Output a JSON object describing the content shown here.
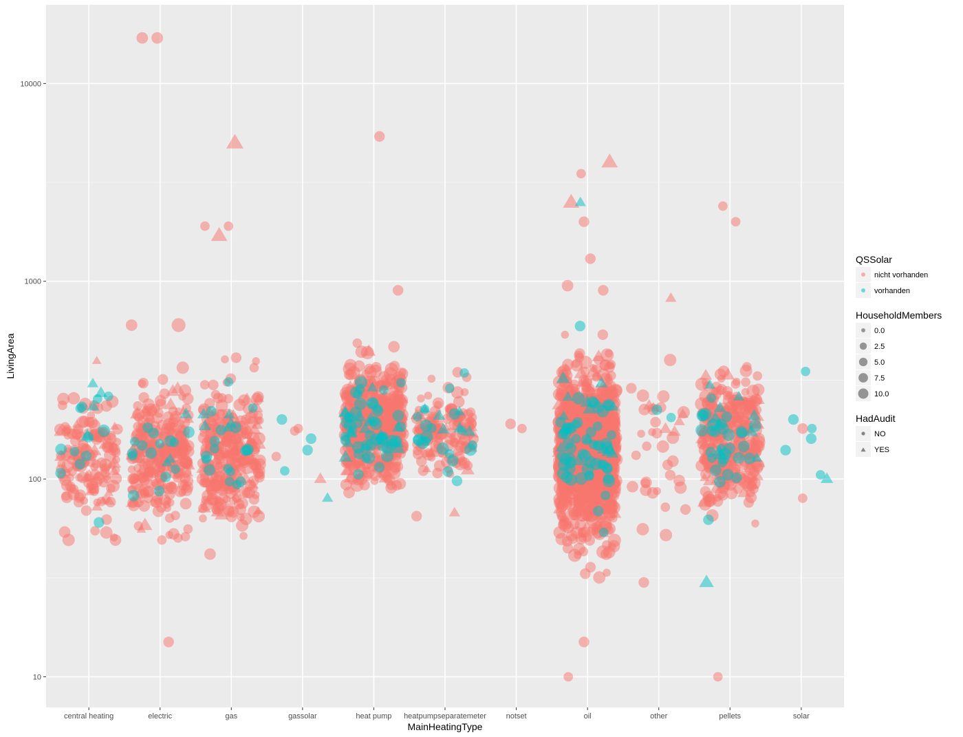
{
  "chart_data": {
    "type": "scatter",
    "xlabel": "MainHeatingType",
    "ylabel": "LivingArea",
    "y_scale": "log10",
    "ylim": [
      7,
      25000
    ],
    "y_ticks": [
      10,
      100,
      1000,
      10000
    ],
    "y_tick_labels": [
      "10",
      "100",
      "1000",
      "10000"
    ],
    "categories": [
      "central heating",
      "electric",
      "gas",
      "gassolar",
      "heat pump",
      "heatpumpseparatemeter",
      "notset",
      "oil",
      "other",
      "pellets",
      "solar"
    ],
    "jitter_width": 0.45,
    "grid": true,
    "legend_position": "right",
    "colors": {
      "panel_bg": "#EBEBEB",
      "grid_major": "#FFFFFF",
      "grid_minor": "#F5F5F5",
      "nicht vorhanden": "#F8766D",
      "vorhanden": "#00BFC4",
      "legend_key_bg": "#F2F2F2",
      "size_key": "#555555"
    },
    "legends": {
      "color": {
        "title": "QSSolar",
        "labels": [
          "nicht vorhanden",
          "vorhanden"
        ]
      },
      "size": {
        "title": "HouseholdMembers",
        "labels": [
          "0.0",
          "2.5",
          "5.0",
          "7.5",
          "10.0"
        ],
        "values": [
          0,
          2.5,
          5,
          7.5,
          10
        ]
      },
      "shape": {
        "title": "HadAudit",
        "labels": [
          "NO",
          "YES"
        ],
        "shapes": [
          "circle",
          "triangle"
        ]
      }
    },
    "clusters": [
      {
        "category": "central heating",
        "solar": "nicht vorhanden",
        "audit": "NO",
        "n": 140,
        "median": 120,
        "spread": 0.16,
        "members": [
          1,
          2,
          3,
          4,
          5
        ]
      },
      {
        "category": "central heating",
        "solar": "nicht vorhanden",
        "audit": "YES",
        "n": 20,
        "median": 130,
        "spread": 0.15,
        "members": [
          1,
          2,
          3,
          4
        ]
      },
      {
        "category": "central heating",
        "solar": "vorhanden",
        "audit": "NO",
        "n": 12,
        "median": 160,
        "spread": 0.15,
        "members": [
          2,
          3,
          4,
          5
        ]
      },
      {
        "category": "central heating",
        "solar": "vorhanden",
        "audit": "YES",
        "n": 4,
        "median": 200,
        "spread": 0.12,
        "members": [
          2,
          3,
          4
        ]
      },
      {
        "category": "electric",
        "solar": "nicht vorhanden",
        "audit": "NO",
        "n": 240,
        "median": 135,
        "spread": 0.17,
        "members": [
          1,
          2,
          3,
          4,
          5
        ]
      },
      {
        "category": "electric",
        "solar": "nicht vorhanden",
        "audit": "YES",
        "n": 45,
        "median": 150,
        "spread": 0.16,
        "members": [
          1,
          2,
          3,
          4,
          5
        ]
      },
      {
        "category": "electric",
        "solar": "vorhanden",
        "audit": "NO",
        "n": 15,
        "median": 130,
        "spread": 0.14,
        "members": [
          2,
          3,
          4
        ]
      },
      {
        "category": "electric",
        "solar": "vorhanden",
        "audit": "YES",
        "n": 3,
        "median": 160,
        "spread": 0.12,
        "members": [
          2,
          3
        ]
      },
      {
        "category": "gas",
        "solar": "nicht vorhanden",
        "audit": "NO",
        "n": 250,
        "median": 130,
        "spread": 0.17,
        "members": [
          1,
          2,
          3,
          4,
          5
        ]
      },
      {
        "category": "gas",
        "solar": "nicht vorhanden",
        "audit": "YES",
        "n": 45,
        "median": 140,
        "spread": 0.16,
        "members": [
          1,
          2,
          3,
          4,
          5
        ]
      },
      {
        "category": "gas",
        "solar": "vorhanden",
        "audit": "NO",
        "n": 18,
        "median": 150,
        "spread": 0.14,
        "members": [
          2,
          3,
          4
        ]
      },
      {
        "category": "gas",
        "solar": "vorhanden",
        "audit": "YES",
        "n": 5,
        "median": 190,
        "spread": 0.12,
        "members": [
          2,
          3
        ]
      },
      {
        "category": "heat pump",
        "solar": "nicht vorhanden",
        "audit": "NO",
        "n": 420,
        "median": 190,
        "spread": 0.14,
        "members": [
          1,
          2,
          3,
          4,
          5,
          6
        ]
      },
      {
        "category": "heat pump",
        "solar": "nicht vorhanden",
        "audit": "YES",
        "n": 90,
        "median": 190,
        "spread": 0.14,
        "members": [
          1,
          2,
          3,
          4,
          5
        ]
      },
      {
        "category": "heat pump",
        "solar": "vorhanden",
        "audit": "NO",
        "n": 45,
        "median": 180,
        "spread": 0.12,
        "members": [
          2,
          3,
          4,
          5
        ]
      },
      {
        "category": "heat pump",
        "solar": "vorhanden",
        "audit": "YES",
        "n": 15,
        "median": 180,
        "spread": 0.12,
        "members": [
          2,
          3,
          4
        ]
      },
      {
        "category": "heatpumpseparatemeter",
        "solar": "nicht vorhanden",
        "audit": "NO",
        "n": 120,
        "median": 175,
        "spread": 0.11,
        "members": [
          1,
          2,
          3,
          4,
          5
        ]
      },
      {
        "category": "heatpumpseparatemeter",
        "solar": "nicht vorhanden",
        "audit": "YES",
        "n": 20,
        "median": 175,
        "spread": 0.1,
        "members": [
          1,
          2,
          3,
          4
        ]
      },
      {
        "category": "heatpumpseparatemeter",
        "solar": "vorhanden",
        "audit": "NO",
        "n": 20,
        "median": 170,
        "spread": 0.1,
        "members": [
          2,
          3,
          4,
          5
        ]
      },
      {
        "category": "heatpumpseparatemeter",
        "solar": "vorhanden",
        "audit": "YES",
        "n": 6,
        "median": 180,
        "spread": 0.08,
        "members": [
          2,
          3
        ]
      },
      {
        "category": "oil",
        "solar": "nicht vorhanden",
        "audit": "NO",
        "n": 1150,
        "median": 135,
        "spread": 0.19,
        "members": [
          1,
          2,
          3,
          4,
          5,
          6
        ]
      },
      {
        "category": "oil",
        "solar": "nicht vorhanden",
        "audit": "YES",
        "n": 150,
        "median": 140,
        "spread": 0.18,
        "members": [
          1,
          2,
          3,
          4,
          5
        ]
      },
      {
        "category": "oil",
        "solar": "vorhanden",
        "audit": "NO",
        "n": 55,
        "median": 150,
        "spread": 0.16,
        "members": [
          2,
          3,
          4,
          5
        ]
      },
      {
        "category": "oil",
        "solar": "vorhanden",
        "audit": "YES",
        "n": 15,
        "median": 160,
        "spread": 0.15,
        "members": [
          2,
          3,
          4
        ]
      },
      {
        "category": "other",
        "solar": "nicht vorhanden",
        "audit": "NO",
        "n": 30,
        "median": 150,
        "spread": 0.2,
        "members": [
          1,
          2,
          3,
          4,
          5
        ]
      },
      {
        "category": "other",
        "solar": "nicht vorhanden",
        "audit": "YES",
        "n": 6,
        "median": 160,
        "spread": 0.18,
        "members": [
          2,
          3,
          4
        ]
      },
      {
        "category": "other",
        "solar": "vorhanden",
        "audit": "NO",
        "n": 2,
        "median": 220,
        "spread": 0.08,
        "members": [
          2,
          3
        ]
      },
      {
        "category": "pellets",
        "solar": "nicht vorhanden",
        "audit": "NO",
        "n": 280,
        "median": 155,
        "spread": 0.15,
        "members": [
          1,
          2,
          3,
          4,
          5,
          6
        ]
      },
      {
        "category": "pellets",
        "solar": "nicht vorhanden",
        "audit": "YES",
        "n": 50,
        "median": 160,
        "spread": 0.15,
        "members": [
          1,
          2,
          3,
          4,
          5
        ]
      },
      {
        "category": "pellets",
        "solar": "vorhanden",
        "audit": "NO",
        "n": 30,
        "median": 160,
        "spread": 0.14,
        "members": [
          2,
          3,
          4,
          5
        ]
      },
      {
        "category": "pellets",
        "solar": "vorhanden",
        "audit": "YES",
        "n": 10,
        "median": 170,
        "spread": 0.13,
        "members": [
          2,
          3,
          4
        ]
      }
    ],
    "points": [
      {
        "category": "electric",
        "y": 17000,
        "solar": "nicht vorhanden",
        "audit": "NO",
        "members": 4,
        "dx": -0.25
      },
      {
        "category": "electric",
        "y": 17000,
        "solar": "nicht vorhanden",
        "audit": "NO",
        "members": 4,
        "dx": -0.04
      },
      {
        "category": "electric",
        "y": 600,
        "solar": "nicht vorhanden",
        "audit": "NO",
        "members": 4,
        "dx": -0.4
      },
      {
        "category": "electric",
        "y": 600,
        "solar": "nicht vorhanden",
        "audit": "NO",
        "members": 7,
        "dx": 0.26
      },
      {
        "category": "electric",
        "y": 15,
        "solar": "nicht vorhanden",
        "audit": "NO",
        "members": 3,
        "dx": 0.12
      },
      {
        "category": "gas",
        "y": 5000,
        "solar": "nicht vorhanden",
        "audit": "YES",
        "members": 8,
        "dx": 0.05
      },
      {
        "category": "gas",
        "y": 1700,
        "solar": "nicht vorhanden",
        "audit": "YES",
        "members": 7,
        "dx": -0.17
      },
      {
        "category": "gas",
        "y": 1900,
        "solar": "nicht vorhanden",
        "audit": "NO",
        "members": 2,
        "dx": -0.37
      },
      {
        "category": "gas",
        "y": 1900,
        "solar": "nicht vorhanden",
        "audit": "NO",
        "members": 2,
        "dx": -0.04
      },
      {
        "category": "gassolar",
        "y": 200,
        "solar": "vorhanden",
        "audit": "NO",
        "members": 3,
        "dx": -0.29
      },
      {
        "category": "gassolar",
        "y": 160,
        "solar": "vorhanden",
        "audit": "NO",
        "members": 3,
        "dx": 0.12
      },
      {
        "category": "gassolar",
        "y": 140,
        "solar": "vorhanden",
        "audit": "NO",
        "members": 3,
        "dx": 0.07
      },
      {
        "category": "gassolar",
        "y": 110,
        "solar": "vorhanden",
        "audit": "NO",
        "members": 2,
        "dx": -0.25
      },
      {
        "category": "gassolar",
        "y": 80,
        "solar": "vorhanden",
        "audit": "YES",
        "members": 2,
        "dx": 0.35
      },
      {
        "category": "gassolar",
        "y": 130,
        "solar": "nicht vorhanden",
        "audit": "NO",
        "members": 2,
        "dx": -0.37
      },
      {
        "category": "gassolar",
        "y": 180,
        "solar": "nicht vorhanden",
        "audit": "NO",
        "members": 2,
        "dx": -0.06
      },
      {
        "category": "gassolar",
        "y": 175,
        "solar": "nicht vorhanden",
        "audit": "NO",
        "members": 2,
        "dx": -0.11
      },
      {
        "category": "gassolar",
        "y": 100,
        "solar": "nicht vorhanden",
        "audit": "YES",
        "members": 3,
        "dx": 0.25
      },
      {
        "category": "heat pump",
        "y": 5400,
        "solar": "nicht vorhanden",
        "audit": "NO",
        "members": 3,
        "dx": 0.08
      },
      {
        "category": "heat pump",
        "y": 900,
        "solar": "nicht vorhanden",
        "audit": "NO",
        "members": 3,
        "dx": 0.34
      },
      {
        "category": "notset",
        "y": 190,
        "solar": "nicht vorhanden",
        "audit": "NO",
        "members": 3,
        "dx": -0.08
      },
      {
        "category": "notset",
        "y": 180,
        "solar": "nicht vorhanden",
        "audit": "NO",
        "members": 2,
        "dx": 0.08
      },
      {
        "category": "oil",
        "y": 4000,
        "solar": "nicht vorhanden",
        "audit": "YES",
        "members": 7,
        "dx": 0.31
      },
      {
        "category": "oil",
        "y": 2500,
        "solar": "nicht vorhanden",
        "audit": "YES",
        "members": 7,
        "dx": -0.23
      },
      {
        "category": "oil",
        "y": 3500,
        "solar": "nicht vorhanden",
        "audit": "NO",
        "members": 2,
        "dx": -0.09
      },
      {
        "category": "oil",
        "y": 2000,
        "solar": "nicht vorhanden",
        "audit": "NO",
        "members": 3,
        "dx": -0.05
      },
      {
        "category": "oil",
        "y": 1300,
        "solar": "nicht vorhanden",
        "audit": "NO",
        "members": 3,
        "dx": 0.04
      },
      {
        "category": "oil",
        "y": 950,
        "solar": "nicht vorhanden",
        "audit": "NO",
        "members": 4,
        "dx": -0.28
      },
      {
        "category": "oil",
        "y": 900,
        "solar": "nicht vorhanden",
        "audit": "NO",
        "members": 3,
        "dx": 0.22
      },
      {
        "category": "oil",
        "y": 2500,
        "solar": "vorhanden",
        "audit": "YES",
        "members": 2,
        "dx": -0.1
      },
      {
        "category": "oil",
        "y": 10,
        "solar": "nicht vorhanden",
        "audit": "NO",
        "members": 2,
        "dx": -0.27
      },
      {
        "category": "oil",
        "y": 15,
        "solar": "nicht vorhanden",
        "audit": "NO",
        "members": 3,
        "dx": -0.05
      },
      {
        "category": "other",
        "y": 820,
        "solar": "nicht vorhanden",
        "audit": "YES",
        "members": 2,
        "dx": 0.17
      },
      {
        "category": "other",
        "y": 400,
        "solar": "nicht vorhanden",
        "audit": "NO",
        "members": 5,
        "dx": 0.16
      },
      {
        "category": "other",
        "y": 30,
        "solar": "nicht vorhanden",
        "audit": "NO",
        "members": 3,
        "dx": -0.21
      },
      {
        "category": "pellets",
        "y": 2400,
        "solar": "nicht vorhanden",
        "audit": "NO",
        "members": 2,
        "dx": -0.1
      },
      {
        "category": "pellets",
        "y": 2000,
        "solar": "nicht vorhanden",
        "audit": "NO",
        "members": 2,
        "dx": 0.08
      },
      {
        "category": "pellets",
        "y": 10,
        "solar": "nicht vorhanden",
        "audit": "NO",
        "members": 2,
        "dx": -0.17
      },
      {
        "category": "pellets",
        "y": 30,
        "solar": "vorhanden",
        "audit": "YES",
        "members": 5,
        "dx": -0.33
      },
      {
        "category": "solar",
        "y": 350,
        "solar": "vorhanden",
        "audit": "NO",
        "members": 2,
        "dx": 0.06
      },
      {
        "category": "solar",
        "y": 200,
        "solar": "vorhanden",
        "audit": "NO",
        "members": 3,
        "dx": -0.11
      },
      {
        "category": "solar",
        "y": 180,
        "solar": "vorhanden",
        "audit": "NO",
        "members": 2,
        "dx": 0.15
      },
      {
        "category": "solar",
        "y": 160,
        "solar": "vorhanden",
        "audit": "NO",
        "members": 3,
        "dx": 0.14
      },
      {
        "category": "solar",
        "y": 140,
        "solar": "vorhanden",
        "audit": "NO",
        "members": 3,
        "dx": -0.22
      },
      {
        "category": "solar",
        "y": 105,
        "solar": "vorhanden",
        "audit": "NO",
        "members": 2,
        "dx": 0.27
      },
      {
        "category": "solar",
        "y": 100,
        "solar": "vorhanden",
        "audit": "YES",
        "members": 3,
        "dx": 0.36
      },
      {
        "category": "solar",
        "y": 180,
        "solar": "nicht vorhanden",
        "audit": "NO",
        "members": 3,
        "dx": 0.02
      },
      {
        "category": "solar",
        "y": 80,
        "solar": "nicht vorhanden",
        "audit": "NO",
        "members": 2,
        "dx": 0.02
      }
    ]
  }
}
